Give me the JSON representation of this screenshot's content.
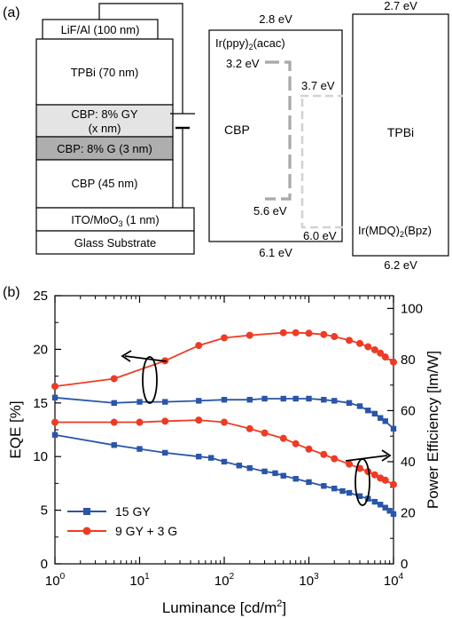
{
  "panel_a": {
    "label": "(a)",
    "stack": {
      "lif": "LiF/Al (100 nm)",
      "tpbi": "TPBi (70 nm)",
      "gy_line1": "CBP: 8% GY",
      "gy_line2": "(x nm)",
      "g": "CBP: 8% G (3 nm)",
      "cbp": "CBP (45 nm)",
      "ito_main": "ITO/MoO",
      "ito_sub": "3",
      "ito_tail": " (1 nm)",
      "glass": "Glass Substrate"
    },
    "energy": {
      "cbp_lumo": "2.8 eV",
      "cbp_homo": "6.1 eV",
      "tpbi_lumo": "2.7 eV",
      "tpbi_homo": "6.2 eV",
      "cbp_label": "CBP",
      "tpbi_label": "TPBi",
      "irppy_main": "Ir(ppy)",
      "irppy_sub": "2",
      "irppy_tail": "(acac)",
      "irppy_lumo": "3.2 eV",
      "irppy_homo": "5.6 eV",
      "irmdq_main": "Ir(MDQ)",
      "irmdq_sub": "2",
      "irmdq_tail": "(Bpz)",
      "irmdq_lumo": "3.7 eV",
      "irmdq_homo": "6.0 eV"
    }
  },
  "chart_data": {
    "type": "line",
    "panel_label": "(b)",
    "xlabel_main": "Luminance [cd/m",
    "xlabel_sup": "2",
    "xlabel_tail": "]",
    "ylabel_left": "EQE [%]",
    "ylabel_right": "Power Efficiency [lm/W]",
    "xscale": "log",
    "xlim": [
      1,
      10000
    ],
    "ylim_left": [
      0,
      25
    ],
    "ylim_right": [
      0,
      105
    ],
    "x_ticks": [
      {
        "base": "10",
        "exp": "0",
        "value": 1
      },
      {
        "base": "10",
        "exp": "1",
        "value": 10
      },
      {
        "base": "10",
        "exp": "2",
        "value": 100
      },
      {
        "base": "10",
        "exp": "3",
        "value": 1000
      },
      {
        "base": "10",
        "exp": "4",
        "value": 10000
      }
    ],
    "y_ticks_left": [
      0,
      5,
      10,
      15,
      20,
      25
    ],
    "y_ticks_right": [
      0,
      20,
      40,
      60,
      80,
      100
    ],
    "colors": {
      "blue": "#2a55a8",
      "red": "#ee3b24"
    },
    "legend": {
      "placement": "bottom-left",
      "entries": [
        {
          "name": "15 GY",
          "color": "#2a55a8",
          "marker": "square"
        },
        {
          "name": "9 GY + 3 G",
          "color": "#ee3b24",
          "marker": "circle"
        }
      ]
    },
    "series": [
      {
        "name": "15 GY EQE",
        "axis": "left",
        "color": "#2a55a8",
        "marker": "square",
        "x": [
          1,
          5,
          10,
          20,
          50,
          100,
          200,
          300,
          500,
          700,
          1000,
          1500,
          2000,
          3000,
          4000,
          5000,
          6000,
          7000,
          8000,
          10000
        ],
        "y": [
          15.5,
          15.0,
          15.1,
          15.1,
          15.2,
          15.3,
          15.3,
          15.4,
          15.4,
          15.4,
          15.4,
          15.3,
          15.2,
          15.0,
          14.7,
          14.3,
          14.0,
          13.6,
          13.3,
          12.6
        ]
      },
      {
        "name": "15 GY Power Efficiency",
        "axis": "right",
        "color": "#2a55a8",
        "marker": "square",
        "x": [
          1,
          5,
          10,
          20,
          50,
          70,
          100,
          150,
          200,
          300,
          400,
          500,
          700,
          1000,
          1500,
          2000,
          2500,
          3000,
          4000,
          5000,
          6000,
          7000,
          8000,
          9000,
          10000
        ],
        "y": [
          50.5,
          46.5,
          45.0,
          43.5,
          42.0,
          41.5,
          40.0,
          38.5,
          37.5,
          36.2,
          35.5,
          34.5,
          33.3,
          32.0,
          30.5,
          29.5,
          28.5,
          27.8,
          26.5,
          25.5,
          24.3,
          23.2,
          22.0,
          20.8,
          19.5
        ]
      },
      {
        "name": "9 GY + 3 G EQE",
        "axis": "left",
        "color": "#ee3b24",
        "marker": "circle",
        "x": [
          1,
          5,
          10,
          20,
          50,
          100,
          200,
          300,
          500,
          700,
          1000,
          1500,
          2000,
          3000,
          4000,
          5000,
          6000,
          7000,
          8000,
          10000
        ],
        "y": [
          13.2,
          13.2,
          13.2,
          13.3,
          13.4,
          13.2,
          12.6,
          12.2,
          11.7,
          11.2,
          10.7,
          10.2,
          9.8,
          9.3,
          8.9,
          8.6,
          8.3,
          8.0,
          7.8,
          7.4
        ]
      },
      {
        "name": "9 GY + 3 G Power Efficiency",
        "axis": "right",
        "color": "#ee3b24",
        "marker": "circle",
        "x": [
          1,
          5,
          20,
          50,
          100,
          200,
          500,
          700,
          1000,
          1500,
          2000,
          3000,
          4000,
          5000,
          6000,
          7000,
          8000,
          10000
        ],
        "y": [
          69.5,
          72.5,
          79.5,
          85.5,
          88.5,
          89.5,
          90.5,
          90.5,
          90.3,
          89.8,
          89.0,
          87.5,
          86.3,
          85.0,
          83.8,
          82.5,
          81.0,
          79.0
        ]
      }
    ]
  }
}
